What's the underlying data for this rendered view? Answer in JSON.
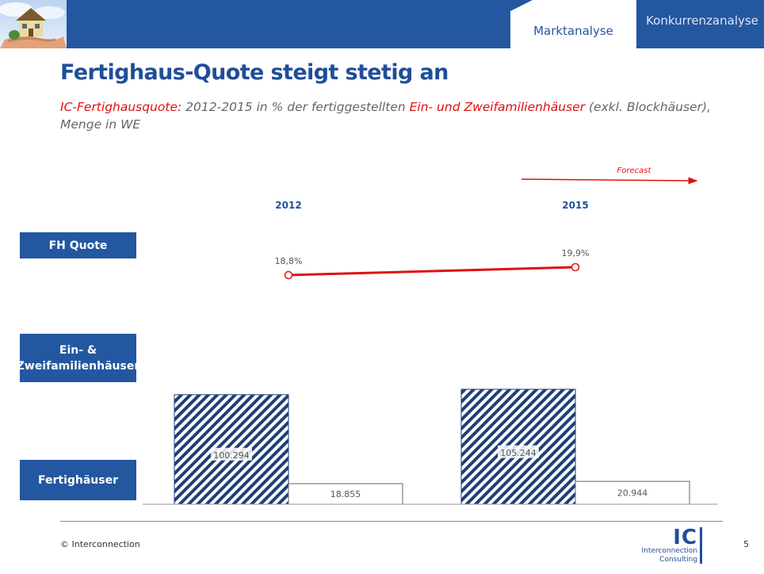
{
  "header": {
    "tabs": [
      {
        "label": "Marktanalyse",
        "active": true
      },
      {
        "label": "Konkurrenzanalyse",
        "active": false
      }
    ]
  },
  "title": "Fertighaus-Quote steigt stetig an",
  "subtitle": {
    "part1": "IC-Fertighausquote:",
    "part2": " 2012-2015 in % der fertiggestellten ",
    "part3": "Ein- und Zweifamilienhäuser",
    "part4": " (exkl. Blockhäuser), Menge in WE"
  },
  "row_labels": {
    "fh_quote": "FH Quote",
    "efh": "Ein- & Zweifamilienhäuser",
    "fertighaeuser": "Fertighäuser"
  },
  "chart_data": {
    "type": "bar",
    "categories": [
      "2012",
      "2015"
    ],
    "forecast_label": "Forecast",
    "quote": {
      "values": [
        18.8,
        19.9
      ],
      "labels": [
        "18,8%",
        "19,9%"
      ]
    },
    "series": [
      {
        "values": [
          100294,
          105244
        ],
        "labels": [
          "100.294",
          "105.244"
        ]
      },
      {
        "values": [
          18855,
          20944
        ],
        "labels": [
          "18.855",
          "20.944"
        ]
      }
    ]
  },
  "colors": {
    "brand": "#2357a0",
    "accent_red": "#e01010"
  },
  "footer": {
    "copyright": "© Interconnection",
    "page_number": "5",
    "logo_letters": "IC",
    "logo_line1": "Interconnection",
    "logo_line2": "Consulting"
  }
}
